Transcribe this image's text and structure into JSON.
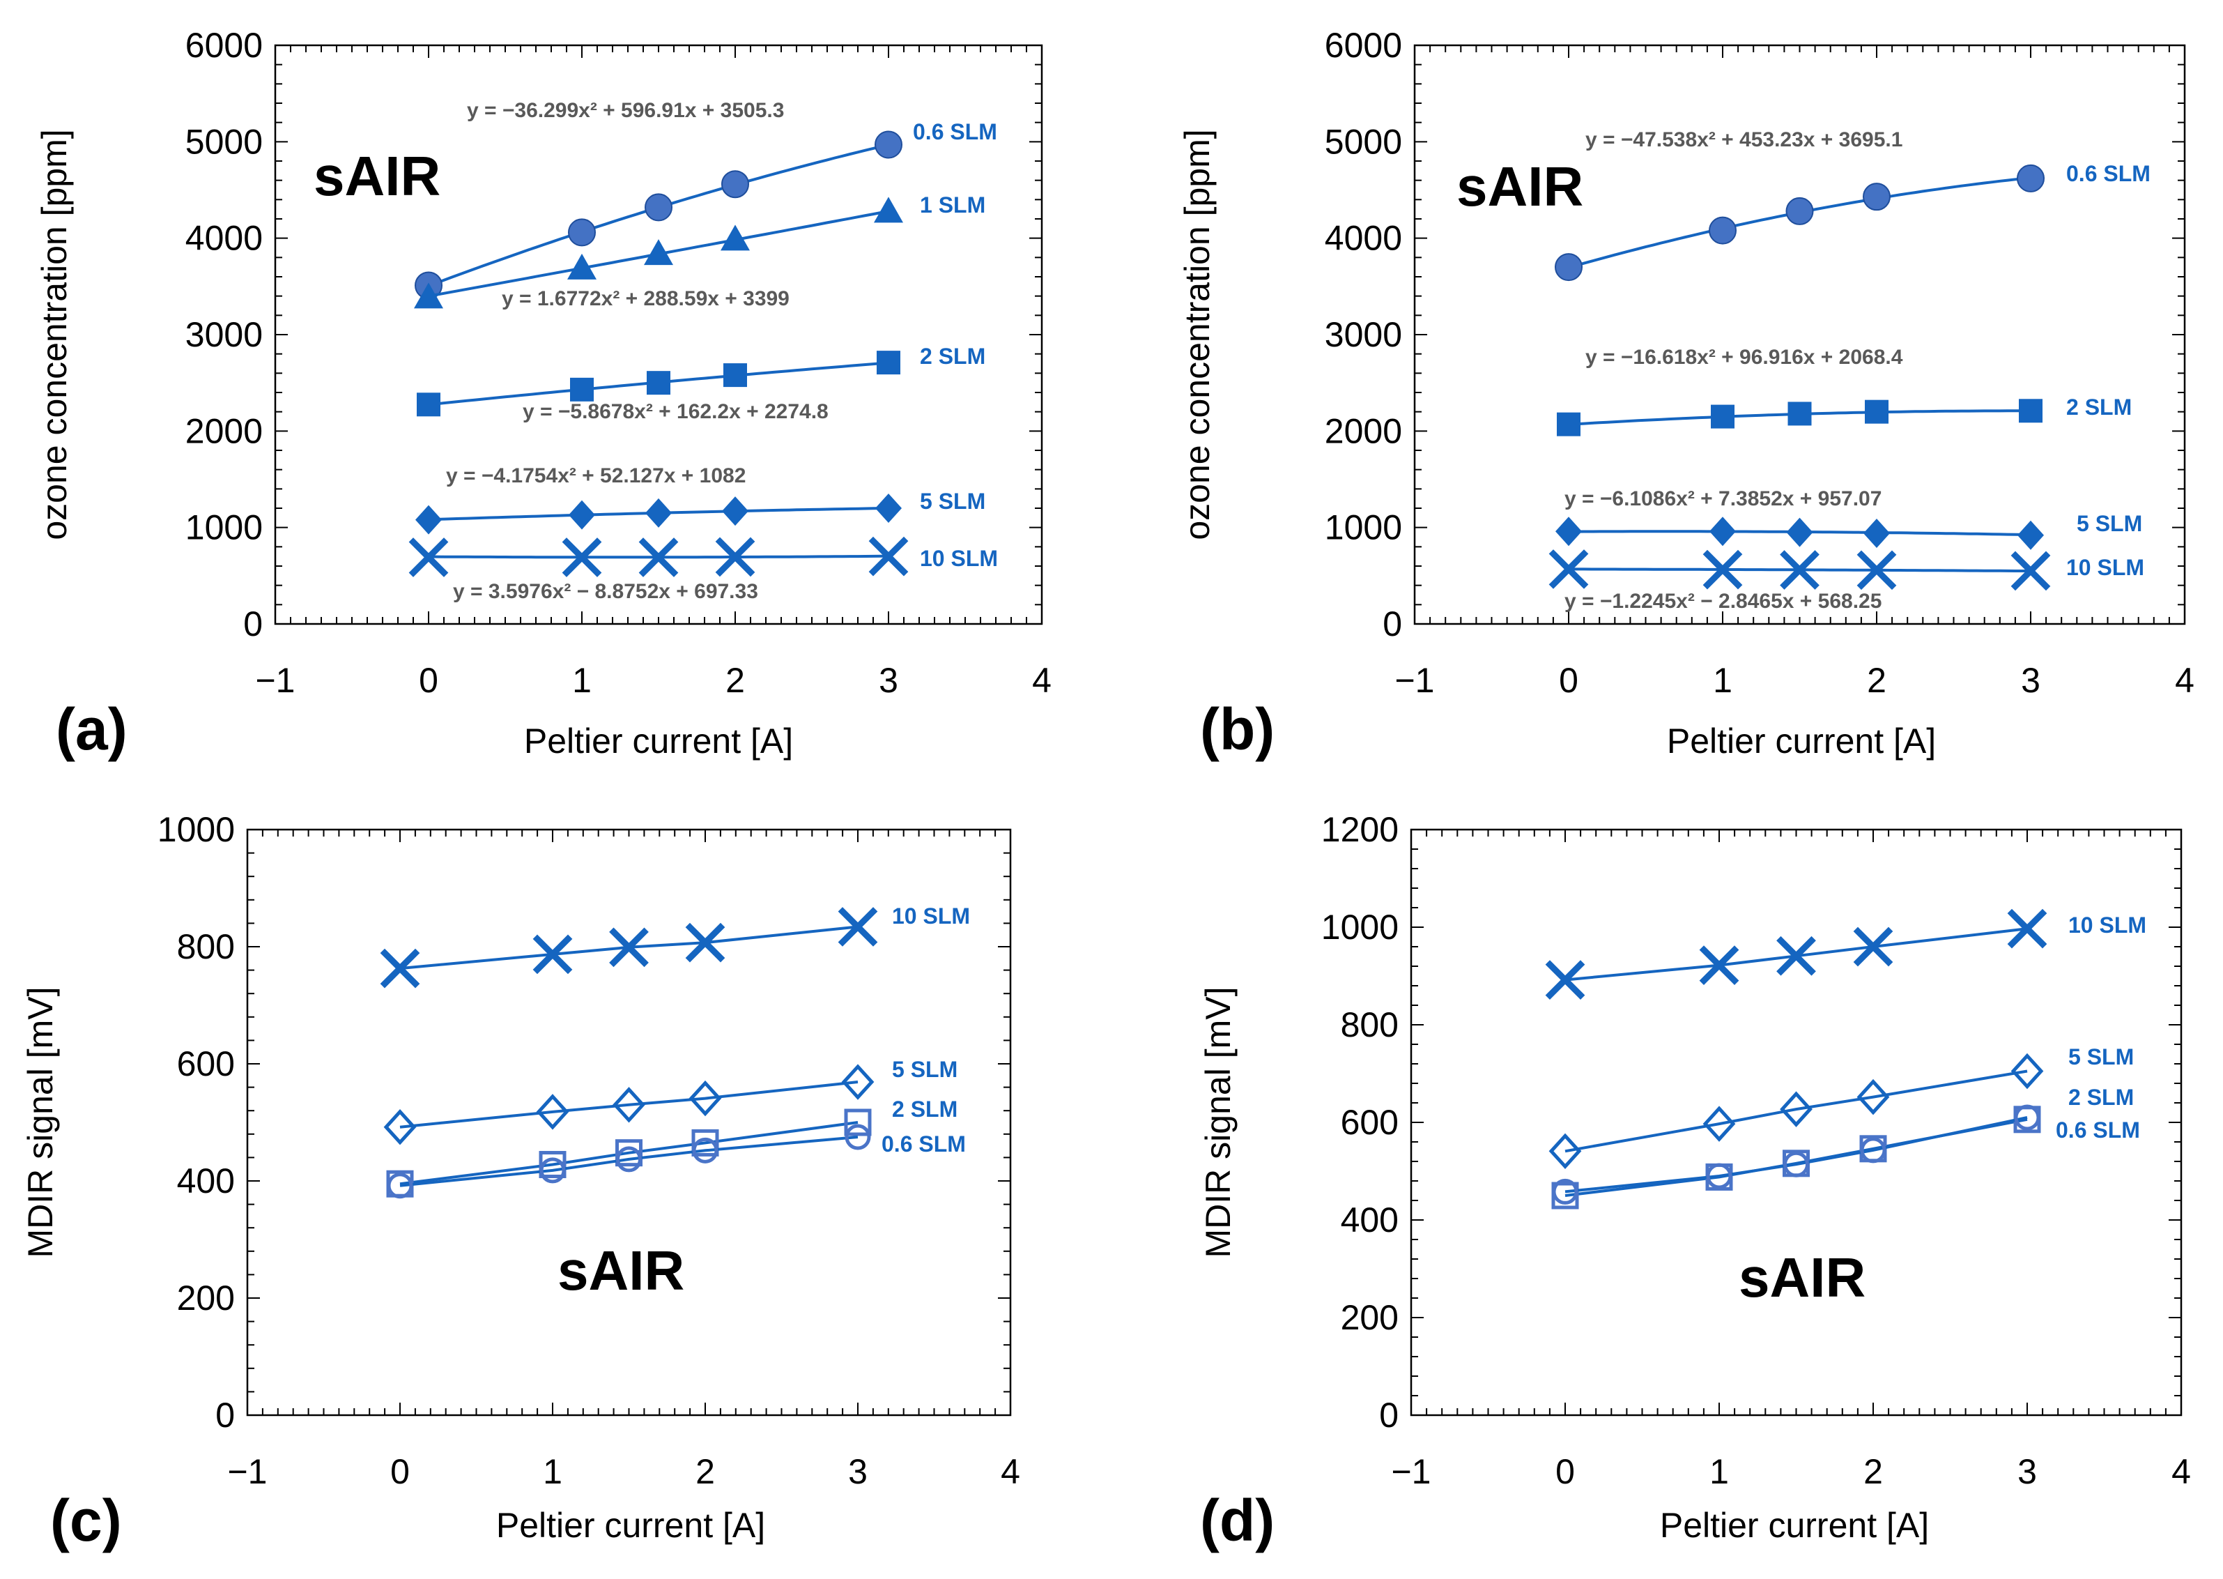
{
  "chart_data": [
    {
      "panel": "(a)",
      "type": "scatter",
      "annotation": "sAIR",
      "xlabel": "Peltier current [A]",
      "ylabel": "ozone concentration [ppm]",
      "xlim": [
        -1,
        4
      ],
      "ylim": [
        0,
        6000
      ],
      "xticks": [
        "−1",
        "0",
        "1",
        "2",
        "3",
        "4"
      ],
      "yticks": [
        "0",
        "1000",
        "2000",
        "3000",
        "4000",
        "5000",
        "6000"
      ],
      "grid": false,
      "series": [
        {
          "name": "0.6 SLM",
          "marker": "circle",
          "fill": "#4472c4",
          "x": [
            0,
            1,
            1.5,
            2,
            3
          ],
          "y": [
            3510,
            4060,
            4320,
            4560,
            4970
          ],
          "fit": {
            "a": -36.299,
            "b": 596.91,
            "c": 3505.3
          },
          "equation": "y = −36.299x² + 596.91x + 3505.3"
        },
        {
          "name": "1 SLM",
          "marker": "triangle",
          "fill": "#0b6fbf",
          "x": [
            0,
            1,
            1.5,
            2,
            3
          ],
          "y": [
            3380,
            3680,
            3830,
            3980,
            4270
          ],
          "fit": {
            "a": 1.6772,
            "b": 288.59,
            "c": 3399
          },
          "equation": "y = 1.6772x² + 288.59x + 3399"
        },
        {
          "name": "2 SLM",
          "marker": "square",
          "fill": "#0b6fbf",
          "x": [
            0,
            1,
            1.5,
            2,
            3
          ],
          "y": [
            2275,
            2430,
            2500,
            2580,
            2710
          ],
          "fit": {
            "a": -5.8678,
            "b": 162.2,
            "c": 2274.8
          },
          "equation": "y = −5.8678x² + 162.2x + 2274.8"
        },
        {
          "name": "5 SLM",
          "marker": "diamond",
          "fill": "#0b6fbf",
          "x": [
            0,
            1,
            1.5,
            2,
            3
          ],
          "y": [
            1080,
            1130,
            1150,
            1170,
            1200
          ],
          "fit": {
            "a": -4.1754,
            "b": 52.127,
            "c": 1082
          },
          "equation": "y = −4.1754x² + 52.127x + 1082"
        },
        {
          "name": "10 SLM",
          "marker": "x",
          "fill": "#0b6fbf",
          "x": [
            0,
            1,
            1.5,
            2,
            3
          ],
          "y": [
            690,
            690,
            690,
            695,
            700
          ],
          "fit": {
            "a": 3.5976,
            "b": -8.8752,
            "c": 697.33
          },
          "equation": "y = 3.5976x² − 8.8752x + 697.33"
        }
      ]
    },
    {
      "panel": "(b)",
      "type": "scatter",
      "annotation": "sAIR",
      "xlabel": "Peltier current [A]",
      "ylabel": "ozone concentration [ppm]",
      "xlim": [
        -1,
        4
      ],
      "ylim": [
        0,
        6000
      ],
      "xticks": [
        "−1",
        "0",
        "1",
        "2",
        "3",
        "4"
      ],
      "yticks": [
        "0",
        "1000",
        "2000",
        "3000",
        "4000",
        "5000",
        "6000"
      ],
      "grid": false,
      "series": [
        {
          "name": "0.6 SLM",
          "marker": "circle",
          "fill": "#4472c4",
          "x": [
            0,
            1,
            1.5,
            2,
            3
          ],
          "y": [
            3700,
            4080,
            4280,
            4430,
            4620
          ],
          "fit": {
            "a": -47.538,
            "b": 453.23,
            "c": 3695.1
          },
          "equation": "y = −47.538x² + 453.23x + 3695.1"
        },
        {
          "name": "2 SLM",
          "marker": "square",
          "fill": "#0b6fbf",
          "x": [
            0,
            1,
            1.5,
            2,
            3
          ],
          "y": [
            2070,
            2150,
            2180,
            2200,
            2210
          ],
          "fit": {
            "a": -16.618,
            "b": 96.916,
            "c": 2068.4
          },
          "equation": "y = −16.618x² + 96.916x + 2068.4"
        },
        {
          "name": "5 SLM",
          "marker": "diamond",
          "fill": "#0b6fbf",
          "x": [
            0,
            1,
            1.5,
            2,
            3
          ],
          "y": [
            960,
            960,
            950,
            940,
            920
          ],
          "fit": {
            "a": -6.1086,
            "b": 7.3852,
            "c": 957.07
          },
          "equation": "y = −6.1086x² + 7.3852x + 957.07"
        },
        {
          "name": "10 SLM",
          "marker": "x",
          "fill": "#0b6fbf",
          "x": [
            0,
            1,
            1.5,
            2,
            3
          ],
          "y": [
            568,
            563,
            560,
            558,
            550
          ],
          "fit": {
            "a": -1.2245,
            "b": -2.8465,
            "c": 568.25
          },
          "equation": "y = −1.2245x² − 2.8465x + 568.25"
        }
      ]
    },
    {
      "panel": "(c)",
      "type": "line",
      "annotation": "sAIR",
      "xlabel": "Peltier current [A]",
      "ylabel": "MDIR signal [mV]",
      "xlim": [
        -1,
        4
      ],
      "ylim": [
        0,
        1000
      ],
      "xticks": [
        "−1",
        "0",
        "1",
        "2",
        "3",
        "4"
      ],
      "yticks": [
        "0",
        "200",
        "400",
        "600",
        "800",
        "1000"
      ],
      "grid": false,
      "series": [
        {
          "name": "10 SLM",
          "marker": "x",
          "x": [
            0,
            1,
            1.5,
            2,
            3
          ],
          "y": [
            763,
            787,
            799,
            807,
            834
          ]
        },
        {
          "name": "5 SLM",
          "marker": "diamond-open",
          "x": [
            0,
            1,
            1.5,
            2,
            3
          ],
          "y": [
            492,
            518,
            530,
            541,
            569
          ]
        },
        {
          "name": "2 SLM",
          "marker": "square-open",
          "x": [
            0,
            1,
            1.5,
            2,
            3
          ],
          "y": [
            395,
            428,
            448,
            465,
            500
          ]
        },
        {
          "name": "0.6 SLM",
          "marker": "circle-open",
          "x": [
            0,
            1,
            1.5,
            2,
            3
          ],
          "y": [
            392,
            418,
            437,
            452,
            475
          ]
        }
      ]
    },
    {
      "panel": "(d)",
      "type": "line",
      "annotation": "sAIR",
      "xlabel": "Peltier current [A]",
      "ylabel": "MDIR signal [mV]",
      "xlim": [
        -1,
        4
      ],
      "ylim": [
        0,
        1200
      ],
      "xticks": [
        "−1",
        "0",
        "1",
        "2",
        "3",
        "4"
      ],
      "yticks": [
        "0",
        "200",
        "400",
        "600",
        "800",
        "1000",
        "1200"
      ],
      "grid": false,
      "series": [
        {
          "name": "10 SLM",
          "marker": "x",
          "x": [
            0,
            1,
            1.5,
            2,
            3
          ],
          "y": [
            892,
            922,
            941,
            960,
            997
          ]
        },
        {
          "name": "5 SLM",
          "marker": "diamond-open",
          "x": [
            0,
            1,
            1.5,
            2,
            3
          ],
          "y": [
            541,
            597,
            627,
            652,
            705
          ]
        },
        {
          "name": "2 SLM",
          "marker": "square-open",
          "x": [
            0,
            1,
            1.5,
            2,
            3
          ],
          "y": [
            450,
            488,
            516,
            546,
            606
          ]
        },
        {
          "name": "0.6 SLM",
          "marker": "circle-open",
          "x": [
            0,
            1,
            1.5,
            2,
            3
          ],
          "y": [
            458,
            490,
            514,
            543,
            610
          ]
        }
      ]
    }
  ]
}
